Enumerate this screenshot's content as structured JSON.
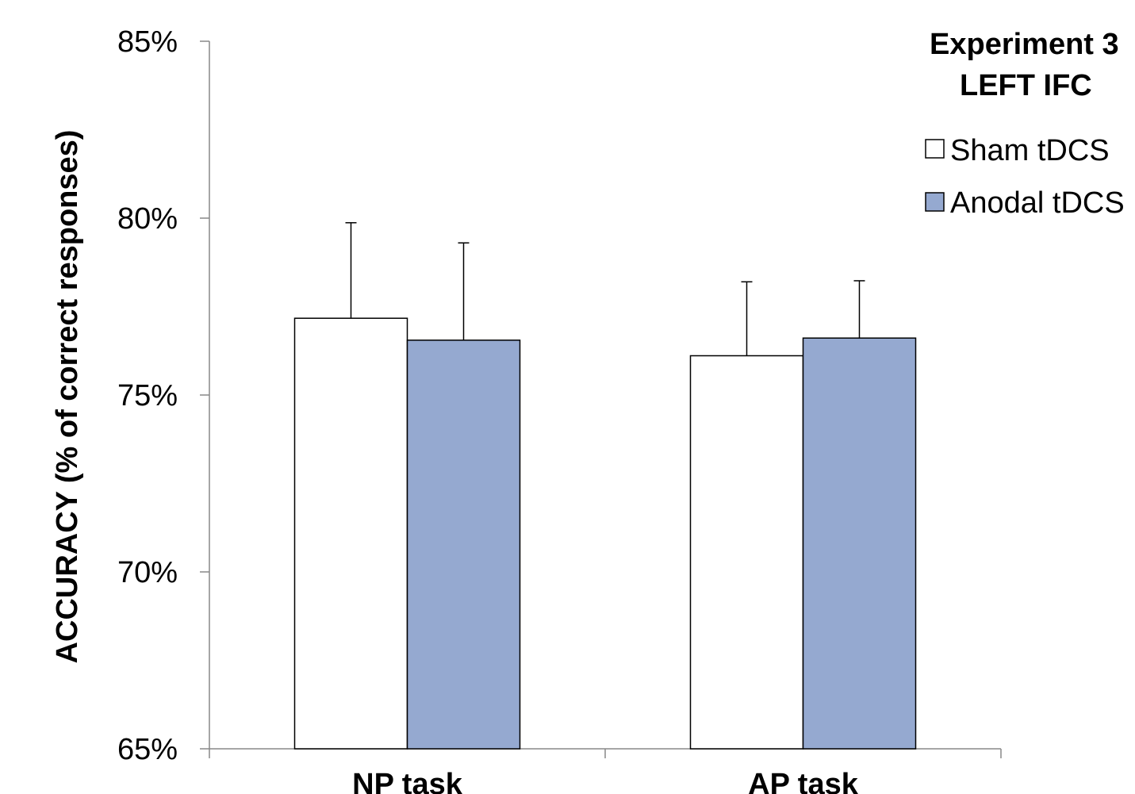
{
  "chart_data": {
    "type": "bar",
    "title_lines": [
      "Experiment 3",
      "LEFT IFC"
    ],
    "ylabel": "ACCURACY (% of correct responses)",
    "xlabel": "",
    "categories": [
      "NP task",
      "AP task"
    ],
    "ylim": [
      0.65,
      0.85
    ],
    "yticks": [
      {
        "value": 0.65,
        "label": "65%"
      },
      {
        "value": 0.7,
        "label": "70%"
      },
      {
        "value": 0.75,
        "label": "75%"
      },
      {
        "value": 0.8,
        "label": "80%"
      },
      {
        "value": 0.85,
        "label": "85%"
      }
    ],
    "series": [
      {
        "name": "Sham tDCS",
        "color": "#ffffff",
        "values": [
          0.7717,
          0.7611
        ],
        "errors": [
          0.027,
          0.0209
        ]
      },
      {
        "name": "Anodal tDCS",
        "color": "#95a9d0",
        "values": [
          0.7655,
          0.7661
        ],
        "errors": [
          0.0275,
          0.0162
        ]
      }
    ],
    "legend_position": "top-right",
    "grid": false
  }
}
